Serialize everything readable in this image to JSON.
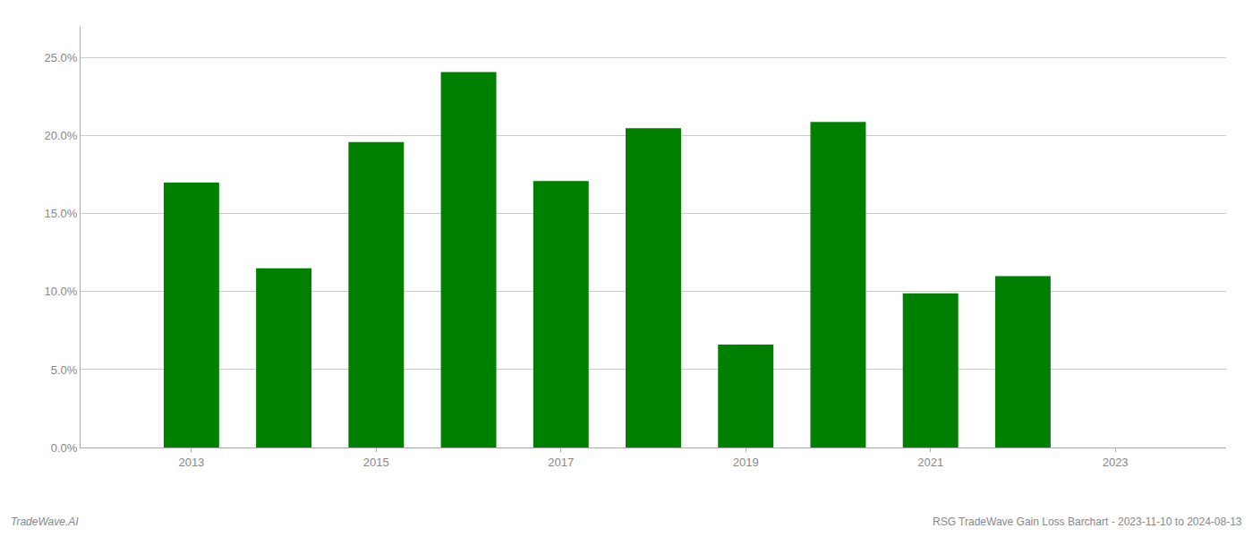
{
  "chart_data": {
    "type": "bar",
    "title": "RSG TradeWave Gain Loss Barchart - 2023-11-10 to 2024-08-13",
    "annotations": [
      "TradeWave.AI"
    ],
    "x": [
      2013,
      2014,
      2015,
      2016,
      2017,
      2018,
      2019,
      2020,
      2021,
      2022,
      2023
    ],
    "values": [
      0.17,
      0.115,
      0.196,
      0.241,
      0.171,
      0.205,
      0.066,
      0.209,
      0.099,
      0.11,
      0.0
    ],
    "color": "#008000",
    "xlim": [
      2011.8,
      2024.2
    ],
    "xticks": [
      2013,
      2015,
      2017,
      2019,
      2021,
      2023
    ],
    "ylim": [
      0,
      0.27
    ],
    "yticks": [
      {
        "value": 0.0,
        "label": "0.0%"
      },
      {
        "value": 0.05,
        "label": "5.0%"
      },
      {
        "value": 0.1,
        "label": "10.0%"
      },
      {
        "value": 0.15,
        "label": "15.0%"
      },
      {
        "value": 0.2,
        "label": "20.0%"
      },
      {
        "value": 0.25,
        "label": "25.0%"
      }
    ],
    "grid": true
  }
}
